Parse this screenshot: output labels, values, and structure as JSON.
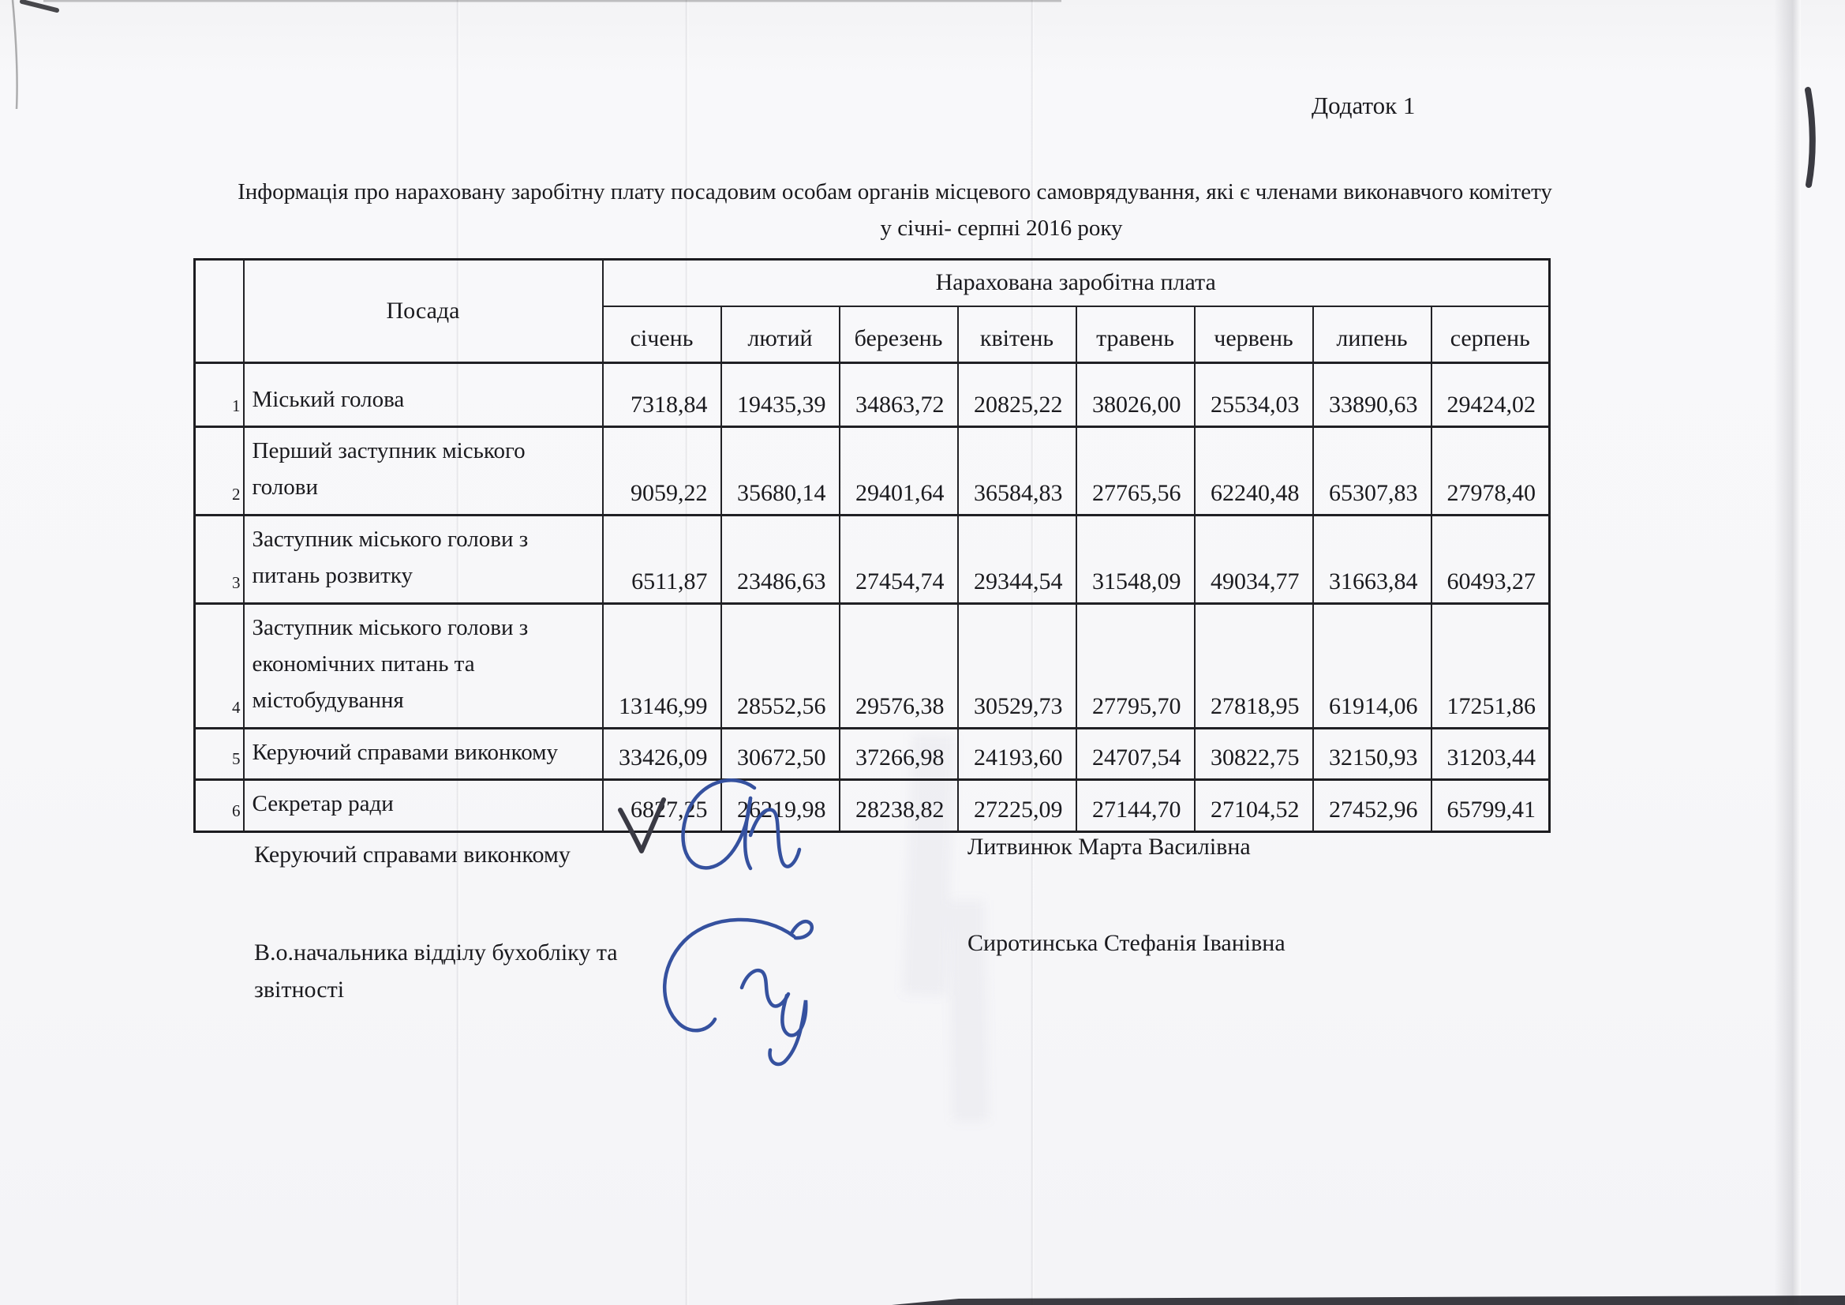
{
  "document": {
    "annex_label": "Додаток 1",
    "title_line1": "Інформація про нараховану заробітну плату  посадовим особам органів місцевого самоврядування, які є членами виконавчого  комітету",
    "title_line2": "у січні- серпні 2016 року"
  },
  "table": {
    "position_header": "Посада",
    "salary_group_header": "Нарахована заробітна плата",
    "months": [
      "січень",
      "лютий",
      "березень",
      "квітень",
      "травень",
      "червень",
      "липень",
      "серпень"
    ],
    "rows": [
      {
        "num": "1",
        "position": "Міський голова",
        "values": [
          "7318,84",
          "19435,39",
          "34863,72",
          "20825,22",
          "38026,00",
          "25534,03",
          "33890,63",
          "29424,02"
        ]
      },
      {
        "num": "2",
        "position": "Перший заступник міського голови",
        "values": [
          "9059,22",
          "35680,14",
          "29401,64",
          "36584,83",
          "27765,56",
          "62240,48",
          "65307,83",
          "27978,40"
        ]
      },
      {
        "num": "3",
        "position": "Заступник міського голови з питань розвитку",
        "values": [
          "6511,87",
          "23486,63",
          "27454,74",
          "29344,54",
          "31548,09",
          "49034,77",
          "31663,84",
          "60493,27"
        ]
      },
      {
        "num": "4",
        "position": "Заступник міського голови з економічних питань та містобудування",
        "values": [
          "13146,99",
          "28552,56",
          "29576,38",
          "30529,73",
          "27795,70",
          "27818,95",
          "61914,06",
          "17251,86"
        ]
      },
      {
        "num": "5",
        "position": "Керуючий справами виконкому",
        "values": [
          "33426,09",
          "30672,50",
          "37266,98",
          "24193,60",
          "24707,54",
          "30822,75",
          "32150,93",
          "31203,44"
        ]
      },
      {
        "num": "6",
        "position": "Секретар ради",
        "values": [
          "6827,25",
          "26219,98",
          "28238,82",
          "27225,09",
          "27144,70",
          "27104,52",
          "27452,96",
          "65799,41"
        ]
      }
    ]
  },
  "signatures": [
    {
      "role": "Керуючий справами виконкому",
      "name": "Литвинюк Марта Василівна"
    },
    {
      "role": "В.о.начальника відділу бухобліку та звітності",
      "name": "Сиротинська Стефанія Іванівна"
    }
  ],
  "ink": {
    "signature_color": "#35519f",
    "pen_mark_color": "#2a2a32"
  }
}
